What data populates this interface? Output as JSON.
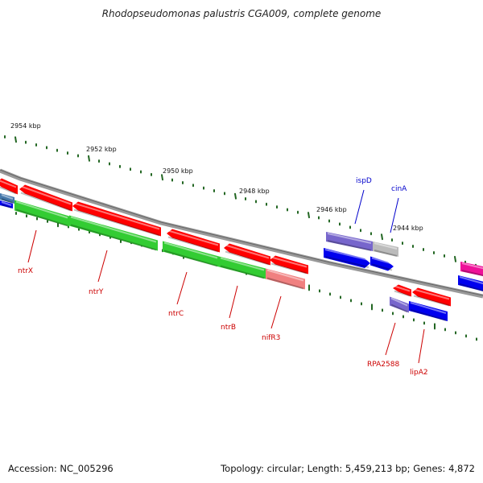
{
  "title": "Rhodopseudomonas palustris CGA009, complete genome",
  "footer": {
    "accession": "Accession: NC_005296",
    "summary": "Topology: circular; Length: 5,459,213 bp; Genes: 4,872"
  },
  "ruler": {
    "labels": [
      "2954 kbp",
      "2952 kbp",
      "2950 kbp",
      "2948 kbp",
      "2946 kbp",
      "2944 kbp"
    ]
  },
  "colors": {
    "red": "#ff0000",
    "green": "#33cc33",
    "pink": "#f08080",
    "blue": "#0000ee",
    "purple": "#7766cc",
    "gray": "#bbbbbb",
    "magenta": "#ee1199",
    "steelblue": "#4477aa",
    "label_red": "#cc0000",
    "label_blue": "#0000cc",
    "tick": "#226622",
    "backbone": "#888888"
  },
  "genes": {
    "labels": [
      "ntrX",
      "ntrY",
      "ntrC",
      "ntrB",
      "nifR3",
      "ispD",
      "cinA",
      "RPA2588",
      "lipA2"
    ]
  }
}
